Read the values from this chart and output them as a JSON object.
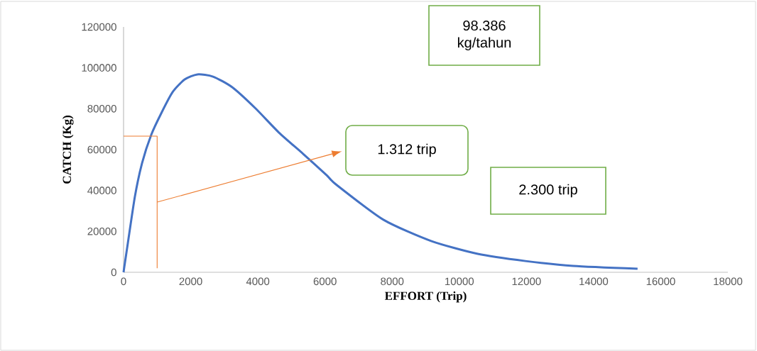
{
  "chart_data": {
    "type": "line",
    "xlabel": "EFFORT (Trip)",
    "ylabel": "CATCH (Kg)",
    "xlim": [
      0,
      18000
    ],
    "ylim": [
      0,
      120000
    ],
    "xticks": [
      0,
      2000,
      4000,
      6000,
      8000,
      10000,
      12000,
      14000,
      16000,
      18000
    ],
    "yticks": [
      0,
      20000,
      40000,
      60000,
      80000,
      100000,
      120000
    ],
    "marker": "none",
    "annotations": [
      "98.386 kg/tahun",
      "1.312 trip",
      "2.300 trip"
    ],
    "series": [
      {
        "color": "#4472c4",
        "x": [
          0,
          20,
          127,
          338,
          550,
          825,
          1120,
          1460,
          1820,
          2200,
          2665,
          3236,
          3934,
          4630,
          5350,
          6050,
          6325,
          7740,
          9160,
          10550,
          11970,
          13390,
          15310
        ],
        "values": [
          0,
          2400,
          14200,
          37100,
          53400,
          67300,
          77700,
          88100,
          94300,
          96800,
          95700,
          90500,
          80100,
          68300,
          57900,
          47500,
          43000,
          25700,
          15300,
          9000,
          5500,
          3100,
          1700
        ]
      },
      {
        "color": "#ed7d31",
        "x": [
          0,
          1000,
          1000
        ],
        "values": [
          66600,
          66600,
          2000
        ]
      }
    ]
  }
}
